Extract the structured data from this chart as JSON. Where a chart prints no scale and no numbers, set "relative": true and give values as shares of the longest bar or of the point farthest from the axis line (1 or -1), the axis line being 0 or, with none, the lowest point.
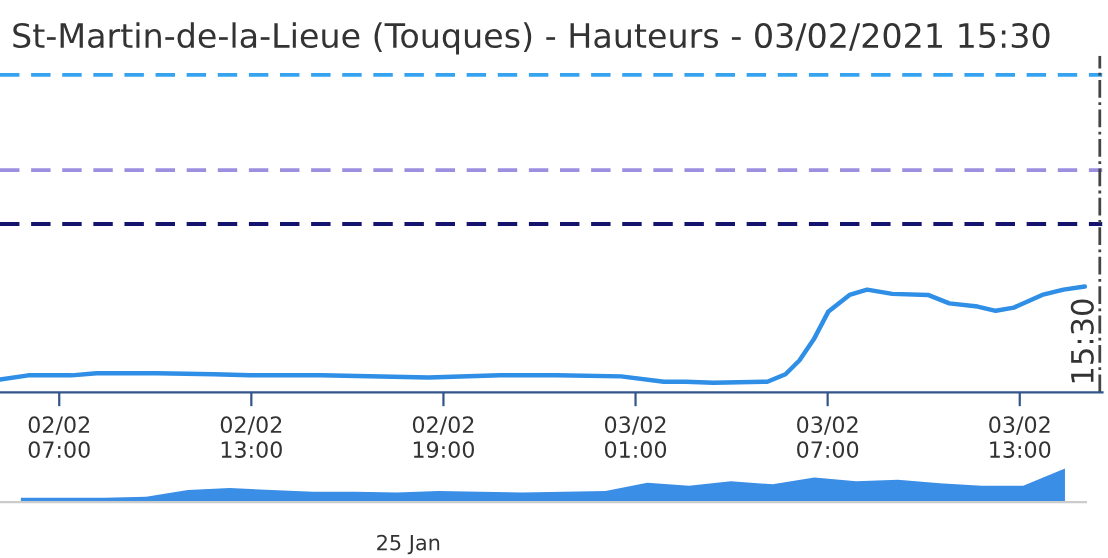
{
  "chart_data": [
    {
      "type": "line",
      "title": "St-Martin-de-la-Lieue (Touques) - Hauteurs - 03/02/2021 15:30",
      "relative": true,
      "x": [
        "2021-02-02T05:09",
        "2021-02-02T06:02",
        "2021-02-02T07:23",
        "2021-02-02T08:10",
        "2021-02-02T08:56",
        "2021-02-02T10:04",
        "2021-02-02T11:50",
        "2021-02-02T12:58",
        "2021-02-02T15:11",
        "2021-02-02T18:32",
        "2021-02-02T20:46",
        "2021-02-02T22:32",
        "2021-02-03T00:33",
        "2021-02-03T01:53",
        "2021-02-03T02:34",
        "2021-02-03T03:26",
        "2021-02-03T05:07",
        "2021-02-03T05:41",
        "2021-02-03T06:07",
        "2021-02-03T06:34",
        "2021-02-03T07:01",
        "2021-02-03T07:41",
        "2021-02-03T08:14",
        "2021-02-03T09:01",
        "2021-02-03T10:08",
        "2021-02-03T10:48",
        "2021-02-03T11:41",
        "2021-02-03T12:15",
        "2021-02-03T12:49",
        "2021-02-03T13:42",
        "2021-02-03T14:22",
        "2021-02-03T15:02"
      ],
      "series": [
        {
          "color": "#2f8ee5",
          "values": [
            0.12,
            0.16,
            0.16,
            0.18,
            0.18,
            0.18,
            0.17,
            0.16,
            0.16,
            0.14,
            0.16,
            0.16,
            0.15,
            0.1,
            0.1,
            0.09,
            0.1,
            0.17,
            0.3,
            0.5,
            0.76,
            0.92,
            0.97,
            0.93,
            0.92,
            0.84,
            0.81,
            0.77,
            0.8,
            0.92,
            0.97,
            1
          ]
        }
      ],
      "xlim": [
        "2021-02-02T05:09",
        "2021-02-03T15:35"
      ],
      "xticks": [
        {
          "value": "2021-02-02T07:00",
          "label": "02/02\n07:00"
        },
        {
          "value": "2021-02-02T13:00",
          "label": "02/02\n13:00"
        },
        {
          "value": "2021-02-02T19:00",
          "label": "02/02\n19:00"
        },
        {
          "value": "2021-02-03T01:00",
          "label": "03/02\n01:00"
        },
        {
          "value": "2021-02-03T07:00",
          "label": "03/02\n07:00"
        },
        {
          "value": "2021-02-03T13:00",
          "label": "03/02\n13:00"
        }
      ],
      "ref_lines": [
        {
          "axis": "y",
          "value": 3.0,
          "color": "#35a3ef",
          "line_style": "dashed"
        },
        {
          "axis": "y",
          "value": 2.1,
          "color": "#9c8fdf",
          "line_style": "dashed"
        },
        {
          "axis": "y",
          "value": 1.59,
          "color": "#14146e",
          "line_style": "dashed"
        },
        {
          "axis": "x",
          "value": "2021-02-03T15:30",
          "label": "15:30",
          "color": "#444444",
          "line_style": "dashdot"
        }
      ],
      "legend": false
    },
    {
      "type": "area",
      "relative": true,
      "categories": [
        null,
        null,
        null,
        null,
        null,
        null,
        null,
        null,
        null,
        null,
        null,
        null,
        null,
        null,
        null,
        null,
        null,
        null,
        null,
        null,
        null,
        null,
        null,
        null,
        null,
        null
      ],
      "series": [
        {
          "color": "#3a8ee6",
          "values": [
            0.13,
            0.13,
            0.13,
            0.16,
            0.36,
            0.42,
            0.36,
            0.31,
            0.31,
            0.29,
            0.33,
            0.31,
            0.29,
            0.31,
            0.33,
            0.58,
            0.49,
            0.62,
            0.53,
            0.73,
            0.62,
            0.67,
            0.56,
            0.49,
            0.49,
            1
          ]
        }
      ],
      "annotations": [
        "25 Jan"
      ]
    }
  ]
}
